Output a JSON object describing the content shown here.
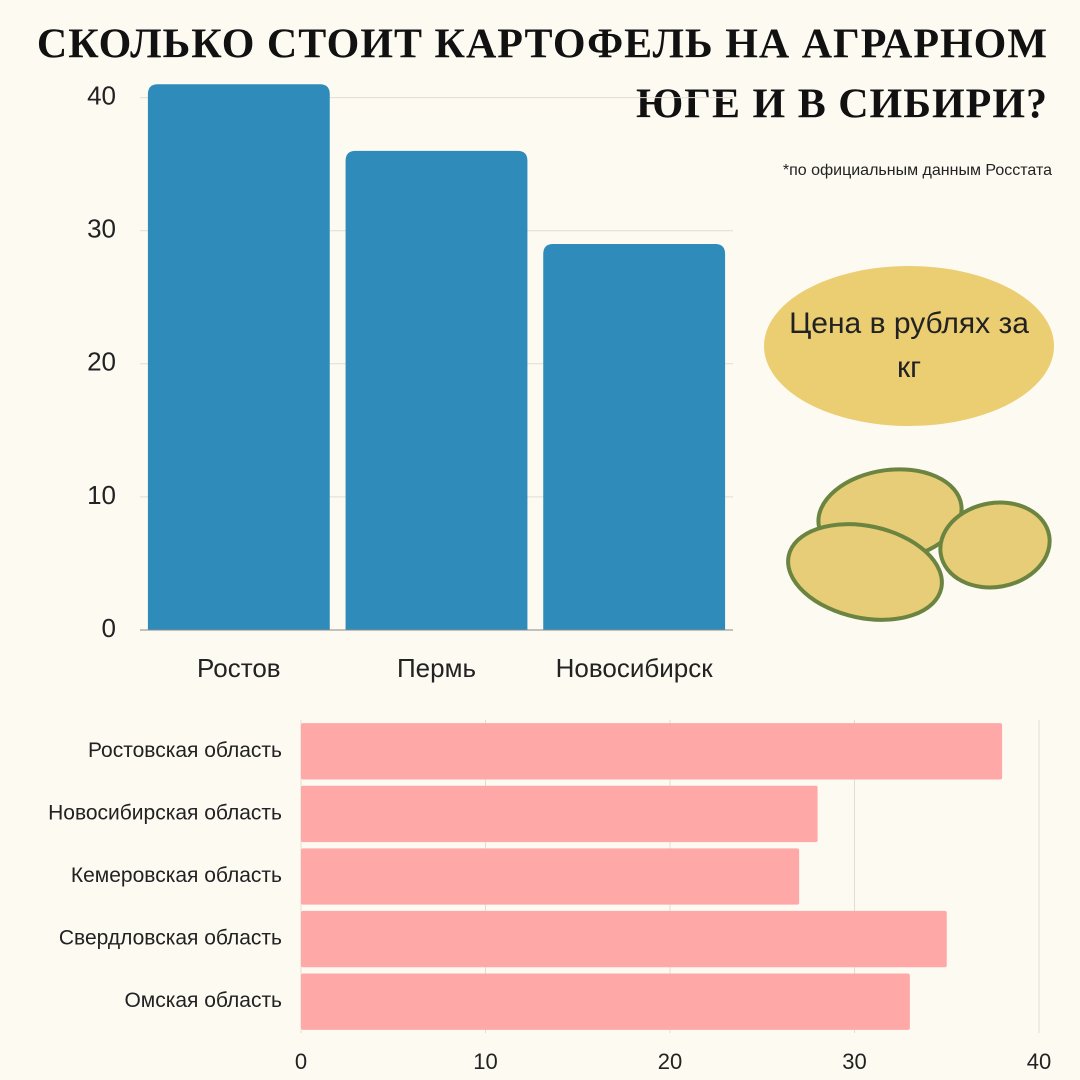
{
  "title": [
    "СКОЛЬКО СТОИТ КАРТОФЕЛЬ НА АГРАРНОМ",
    "ЮГЕ И В СИБИРИ?"
  ],
  "note": "*по официальным данным Росстата",
  "badge": "Цена в рублях за кг",
  "chart_data": [
    {
      "type": "bar",
      "categories": [
        "Ростов",
        "Пермь",
        "Новосибирск"
      ],
      "values": [
        41,
        36,
        29
      ],
      "color": "#2e8bba",
      "ylim": [
        0,
        42
      ],
      "yticks": [
        0,
        10,
        20,
        30,
        40
      ],
      "grid": true
    },
    {
      "type": "barh",
      "categories": [
        "Ростовская область",
        "Новосибирская область",
        "Кемеровская область",
        "Свердловская область",
        "Омская область"
      ],
      "values": [
        38,
        28,
        27,
        35,
        33
      ],
      "color": "#fea8a8",
      "xlim": [
        0,
        40
      ],
      "xticks": [
        0,
        10,
        20,
        30,
        40
      ],
      "grid": true
    }
  ]
}
